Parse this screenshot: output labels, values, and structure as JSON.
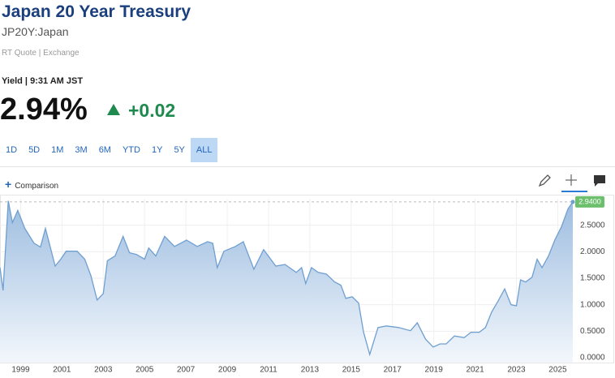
{
  "header": {
    "title": "Japan 20 Year Treasury",
    "symbol": "JP20Y:Japan",
    "source": "RT Quote | Exchange",
    "time": "Yield | 9:31 AM JST",
    "price": "2.94%",
    "change": "+0.02"
  },
  "ranges": [
    "1D",
    "5D",
    "1M",
    "3M",
    "6M",
    "YTD",
    "1Y",
    "5Y",
    "ALL"
  ],
  "selected_range": "ALL",
  "comparison": "Comparison",
  "chart_data": {
    "type": "area",
    "x": [
      1998.0,
      1998.15,
      1998.4,
      1998.6,
      1998.86,
      1999.2,
      1999.65,
      1999.96,
      2000.2,
      2000.67,
      2000.94,
      2001.2,
      2001.73,
      2002.1,
      2002.4,
      2002.7,
      2003.0,
      2003.2,
      2003.57,
      2003.96,
      2004.27,
      2004.6,
      2005.0,
      2005.2,
      2005.54,
      2005.97,
      2006.45,
      2007.03,
      2007.55,
      2008.05,
      2008.3,
      2008.52,
      2008.84,
      2009.4,
      2009.78,
      2010.29,
      2010.76,
      2011.35,
      2011.8,
      2012.34,
      2012.6,
      2012.8,
      2013.08,
      2013.4,
      2013.8,
      2014.2,
      2014.5,
      2014.74,
      2015.05,
      2015.36,
      2015.6,
      2015.9,
      2016.3,
      2016.7,
      2017.3,
      2017.87,
      2018.2,
      2018.6,
      2018.97,
      2019.3,
      2019.6,
      2020.0,
      2020.47,
      2020.8,
      2021.2,
      2021.5,
      2021.8,
      2022.1,
      2022.43,
      2022.74,
      2023.0,
      2023.2,
      2023.45,
      2023.76,
      2024.0,
      2024.24,
      2024.55,
      2024.86,
      2025.18,
      2025.5,
      2025.73
    ],
    "values": [
      1.7,
      1.27,
      2.96,
      2.55,
      2.78,
      2.44,
      2.16,
      2.09,
      2.44,
      1.73,
      1.86,
      2.01,
      2.01,
      1.86,
      1.55,
      1.09,
      1.21,
      1.83,
      1.92,
      2.29,
      1.98,
      1.95,
      1.86,
      2.07,
      1.92,
      2.29,
      2.1,
      2.22,
      2.1,
      2.19,
      2.16,
      1.7,
      2.01,
      2.1,
      2.19,
      1.67,
      2.04,
      1.73,
      1.76,
      1.61,
      1.7,
      1.4,
      1.7,
      1.61,
      1.58,
      1.43,
      1.37,
      1.12,
      1.15,
      1.03,
      0.48,
      0.06,
      0.57,
      0.6,
      0.57,
      0.51,
      0.66,
      0.35,
      0.2,
      0.26,
      0.26,
      0.41,
      0.38,
      0.48,
      0.48,
      0.57,
      0.86,
      1.06,
      1.3,
      1.0,
      0.98,
      1.47,
      1.43,
      1.52,
      1.86,
      1.7,
      1.92,
      2.22,
      2.47,
      2.81,
      2.94
    ],
    "color": "#6f9fd0",
    "last_label": "2.9400",
    "last_label_color": "#6cbf6c",
    "xlim": [
      1998,
      2025.73
    ],
    "xticks": [
      1999,
      2001,
      2003,
      2005,
      2007,
      2009,
      2011,
      2013,
      2015,
      2017,
      2019,
      2021,
      2023,
      2025
    ],
    "ylim": [
      0,
      3
    ],
    "yticks": [
      {
        "value": 0,
        "label": "0.0000"
      },
      {
        "value": 0.5,
        "label": "0.5000"
      },
      {
        "value": 1,
        "label": "1.0000"
      },
      {
        "value": 1.5,
        "label": "1.5000"
      },
      {
        "value": 2,
        "label": "2.0000"
      },
      {
        "value": 2.5,
        "label": "2.5000"
      }
    ],
    "grid": true
  }
}
